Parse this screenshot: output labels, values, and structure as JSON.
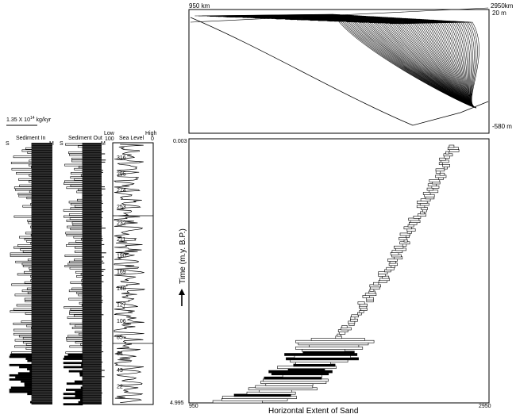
{
  "cross_section": {
    "left_label": "950  km",
    "right_label": "2950km",
    "top_depth": "20 m",
    "bottom_depth": "-580 m"
  },
  "left_panel": {
    "scale_label": "1.35  X  10",
    "scale_exp": "14",
    "scale_unit": "kg/kyr",
    "sediment_in": {
      "title": "Sediment  In",
      "left_tag": "S",
      "right_tag": "M"
    },
    "sediment_out": {
      "title": "Sediment  Out",
      "left_tag": "S",
      "right_tag": "M"
    },
    "sea_level": {
      "title": "Sea  Level",
      "low_label": "Low",
      "low_value": "100",
      "high_label": "High",
      "high_value": "0",
      "ticks": [
        "316",
        "295",
        "274",
        "253",
        "232",
        "211",
        "190",
        "169",
        "148",
        "127",
        "106",
        "85",
        "64",
        "43",
        "22"
      ]
    }
  },
  "sand_plot": {
    "y_top": "0.003",
    "y_bottom": "4.995",
    "x_left": "950",
    "x_right": "2950",
    "y_label": "Time (m.y. B.P.)",
    "x_label": "Horizontal Extent of Sand"
  }
}
